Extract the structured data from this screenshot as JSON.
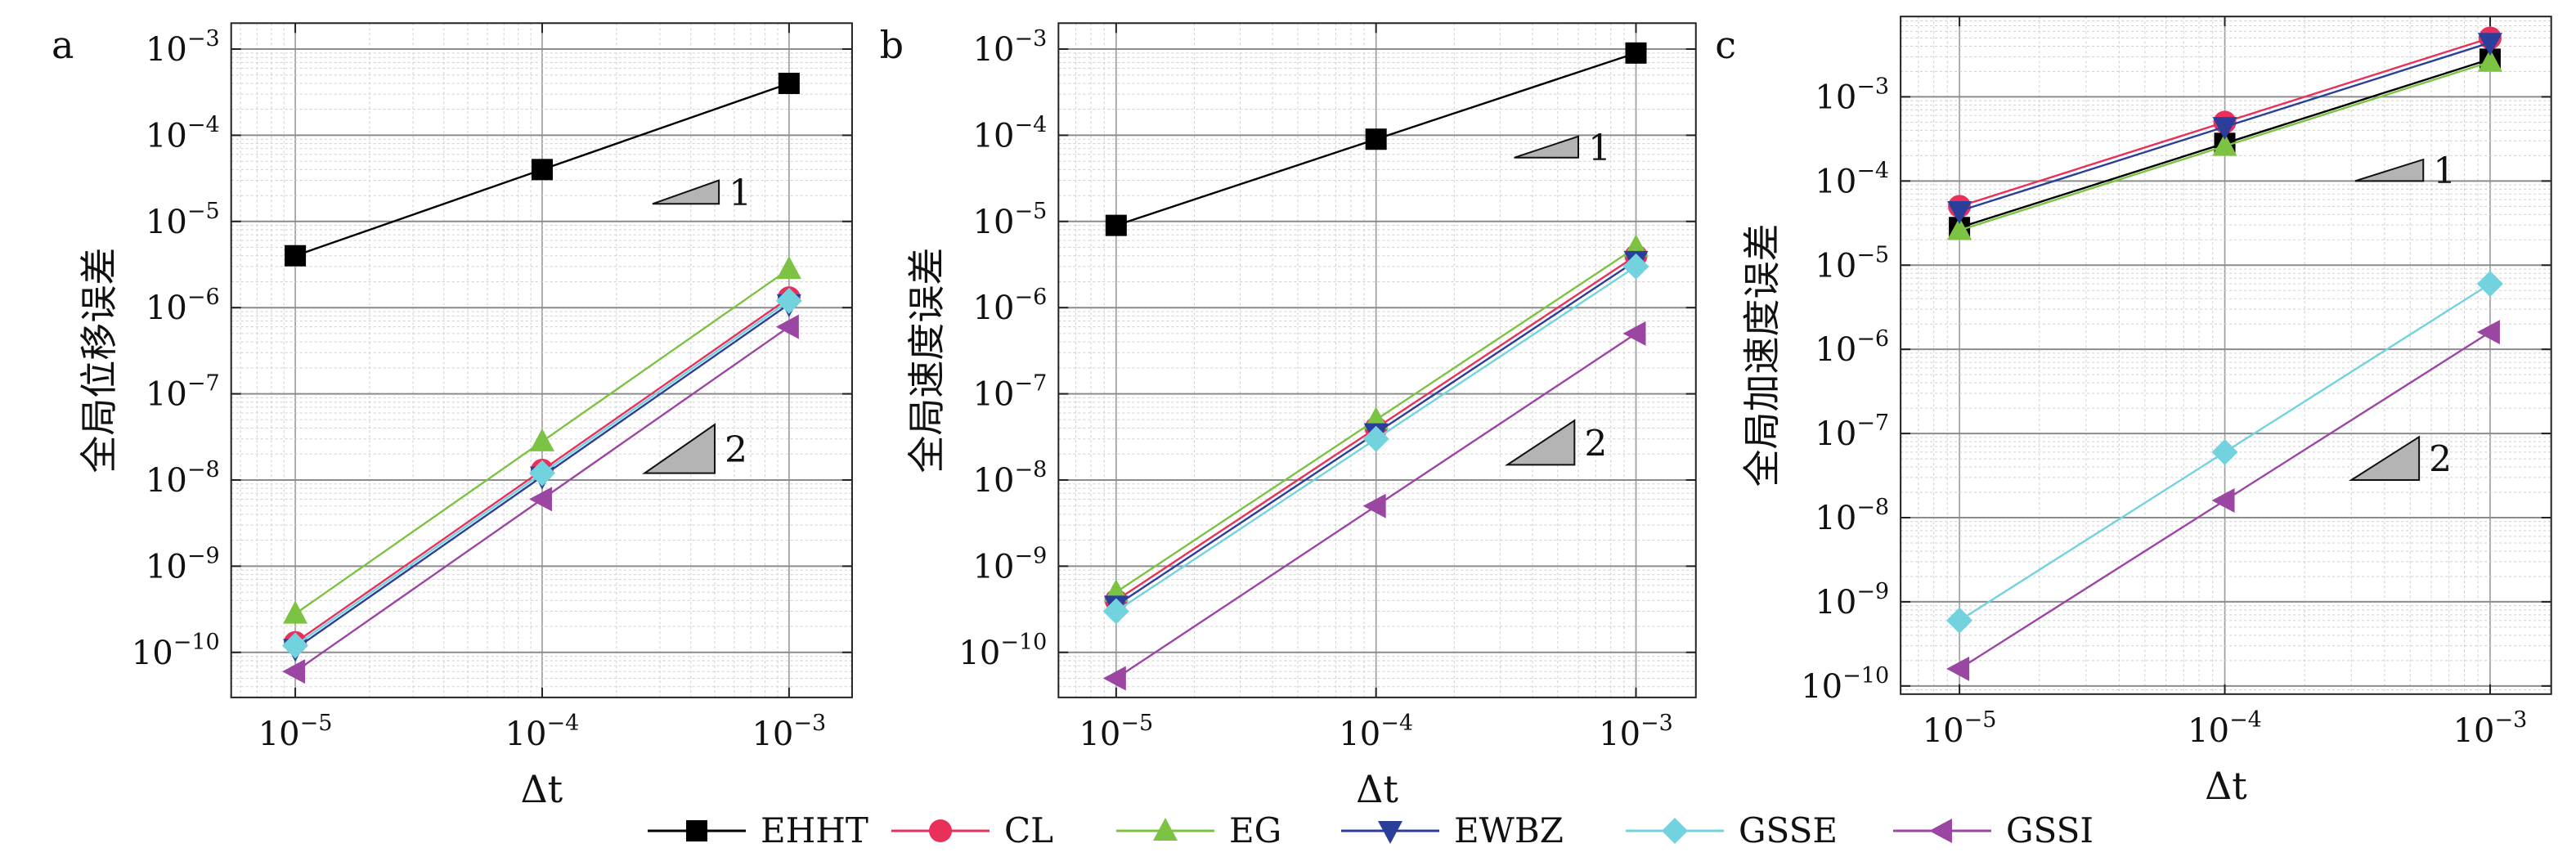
{
  "colors": {
    "EHHT": "#000000",
    "CL": "#e8305a",
    "EG": "#7cc243",
    "EWBZ": "#2b3f9a",
    "GSSE": "#72d3df",
    "GSSI": "#9b46a3",
    "triangle_fill": "#b4b4b4"
  },
  "legend": {
    "entries": [
      "EHHT",
      "CL",
      "EG",
      "EWBZ",
      "GSSE",
      "GSSI"
    ],
    "placement": "bottom"
  },
  "chart_data": [
    {
      "type": "line",
      "panel": "a",
      "xlabel": "Δt",
      "ylabel": "全局位移误差",
      "xscale": "log",
      "yscale": "log",
      "x": [
        1e-05,
        0.0001,
        0.001
      ],
      "xticks": [
        1e-05,
        0.0001,
        0.001
      ],
      "xlim": [
        5.5e-06,
        0.0018
      ],
      "ylim": [
        3e-11,
        0.002
      ],
      "yticks": [
        1e-10,
        1e-09,
        1e-08,
        1e-07,
        1e-06,
        1e-05,
        0.0001,
        0.001
      ],
      "grid": true,
      "series": [
        {
          "name": "EHHT",
          "values": [
            4e-06,
            4e-05,
            0.0004
          ],
          "marker": "square"
        },
        {
          "name": "CL",
          "values": [
            1.3e-10,
            1.3e-08,
            1.3e-06
          ],
          "marker": "circle"
        },
        {
          "name": "EG",
          "values": [
            2.8e-10,
            2.8e-08,
            2.8e-06
          ],
          "marker": "triangle-up"
        },
        {
          "name": "EWBZ",
          "values": [
            1.1e-10,
            1.1e-08,
            1.1e-06
          ],
          "marker": "triangle-down"
        },
        {
          "name": "GSSE",
          "values": [
            1.2e-10,
            1.2e-08,
            1.2e-06
          ],
          "marker": "diamond"
        },
        {
          "name": "GSSI",
          "values": [
            6e-11,
            6e-09,
            6e-07
          ],
          "marker": "triangle-left"
        }
      ],
      "slope_triangles": [
        {
          "label": "1",
          "x0": 0.00028,
          "x1": 0.00052,
          "y_base": 1.6e-05,
          "y_top": 3e-05
        },
        {
          "label": "2",
          "x0": 0.00026,
          "x1": 0.0005,
          "y_base": 1.2e-08,
          "y_top": 4.4e-08
        }
      ]
    },
    {
      "type": "line",
      "panel": "b",
      "xlabel": "Δt",
      "ylabel": "全局速度误差",
      "xscale": "log",
      "yscale": "log",
      "x": [
        1e-05,
        0.0001,
        0.001
      ],
      "xticks": [
        1e-05,
        0.0001,
        0.001
      ],
      "xlim": [
        6e-06,
        0.0017
      ],
      "ylim": [
        3e-11,
        0.002
      ],
      "yticks": [
        1e-10,
        1e-09,
        1e-08,
        1e-07,
        1e-06,
        1e-05,
        0.0001,
        0.001
      ],
      "grid": true,
      "series": [
        {
          "name": "EHHT",
          "values": [
            9e-06,
            9e-05,
            0.0009
          ],
          "marker": "square"
        },
        {
          "name": "CL",
          "values": [
            4e-10,
            4e-08,
            4e-06
          ],
          "marker": "circle"
        },
        {
          "name": "EG",
          "values": [
            5e-10,
            5e-08,
            5e-06
          ],
          "marker": "triangle-up"
        },
        {
          "name": "EWBZ",
          "values": [
            3.5e-10,
            3.5e-08,
            3.5e-06
          ],
          "marker": "triangle-down"
        },
        {
          "name": "GSSE",
          "values": [
            3e-10,
            3e-08,
            3e-06
          ],
          "marker": "diamond"
        },
        {
          "name": "GSSI",
          "values": [
            5e-11,
            5e-09,
            5e-07
          ],
          "marker": "triangle-left"
        }
      ],
      "slope_triangles": [
        {
          "label": "1",
          "x0": 0.00034,
          "x1": 0.0006,
          "y_base": 5.5e-05,
          "y_top": 9.7e-05
        },
        {
          "label": "2",
          "x0": 0.00032,
          "x1": 0.00058,
          "y_base": 1.5e-08,
          "y_top": 4.9e-08
        }
      ]
    },
    {
      "type": "line",
      "panel": "c",
      "xlabel": "Δt",
      "ylabel": "全局加速度误差",
      "xscale": "log",
      "yscale": "log",
      "x": [
        1e-05,
        0.0001,
        0.001
      ],
      "xticks": [
        1e-05,
        0.0001,
        0.001
      ],
      "xlim": [
        6e-06,
        0.0017
      ],
      "ylim": [
        8e-11,
        0.009
      ],
      "yticks": [
        1e-10,
        1e-09,
        1e-08,
        1e-07,
        1e-06,
        1e-05,
        0.0001,
        0.001
      ],
      "grid": true,
      "series": [
        {
          "name": "EHHT",
          "values": [
            2.8e-05,
            0.00028,
            0.0028
          ],
          "marker": "square"
        },
        {
          "name": "CL",
          "values": [
            5e-05,
            0.0005,
            0.005
          ],
          "marker": "circle"
        },
        {
          "name": "EG",
          "values": [
            2.6e-05,
            0.00026,
            0.0026
          ],
          "marker": "triangle-up"
        },
        {
          "name": "EWBZ",
          "values": [
            4.4e-05,
            0.00044,
            0.0044
          ],
          "marker": "triangle-down"
        },
        {
          "name": "GSSE",
          "values": [
            6e-10,
            6e-08,
            6e-06
          ],
          "marker": "diamond"
        },
        {
          "name": "GSSI",
          "values": [
            1.6e-10,
            1.6e-08,
            1.6e-06
          ],
          "marker": "triangle-left"
        }
      ],
      "slope_triangles": [
        {
          "label": "1",
          "x0": 0.00031,
          "x1": 0.00056,
          "y_base": 0.0001,
          "y_top": 0.00018
        },
        {
          "label": "2",
          "x0": 0.0003,
          "x1": 0.00054,
          "y_base": 2.8e-08,
          "y_top": 9.1e-08
        }
      ]
    }
  ]
}
